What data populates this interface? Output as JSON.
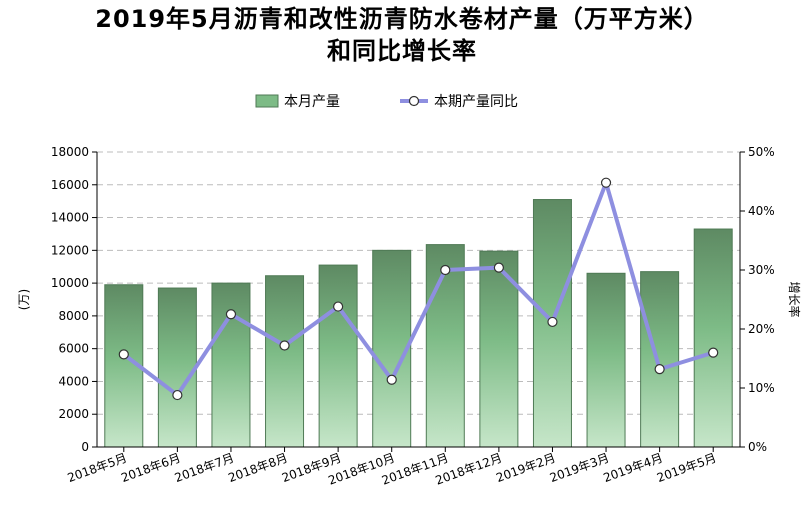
{
  "chart_data": {
    "type": "bar",
    "title": "2019年5月沥青和改性沥青防水卷材产量（万平方米）",
    "subtitle": "和同比增长率",
    "categories": [
      "2018年5月",
      "2018年6月",
      "2018年7月",
      "2018年8月",
      "2018年9月",
      "2018年10月",
      "2018年11月",
      "2018年12月",
      "2019年2月",
      "2019年3月",
      "2019年4月",
      "2019年5月"
    ],
    "series": [
      {
        "name": "本月产量",
        "type": "bar",
        "axis": "left",
        "color": "#74b27e",
        "values": [
          9900,
          9700,
          10000,
          10450,
          11100,
          12000,
          12350,
          11950,
          15100,
          10600,
          10700,
          13300
        ]
      },
      {
        "name": "本期产量同比",
        "type": "line",
        "axis": "right",
        "unit": "%",
        "color": "#8e8fe0",
        "values": [
          15.7,
          8.8,
          22.5,
          17.2,
          23.8,
          11.4,
          30.0,
          30.4,
          21.2,
          44.8,
          13.2,
          16.0
        ]
      }
    ],
    "ylabel": "(万)",
    "y2label": "增长率",
    "ylim": [
      0,
      18000
    ],
    "y_ticks": [
      "0",
      "2000",
      "4000",
      "6000",
      "8000",
      "10000",
      "12000",
      "14000",
      "16000",
      "18000"
    ],
    "y2lim": [
      0,
      50
    ],
    "y2_ticks": [
      "0%",
      "10%",
      "20%",
      "30%",
      "40%",
      "50%"
    ],
    "grid": true,
    "legend": "top-center"
  }
}
